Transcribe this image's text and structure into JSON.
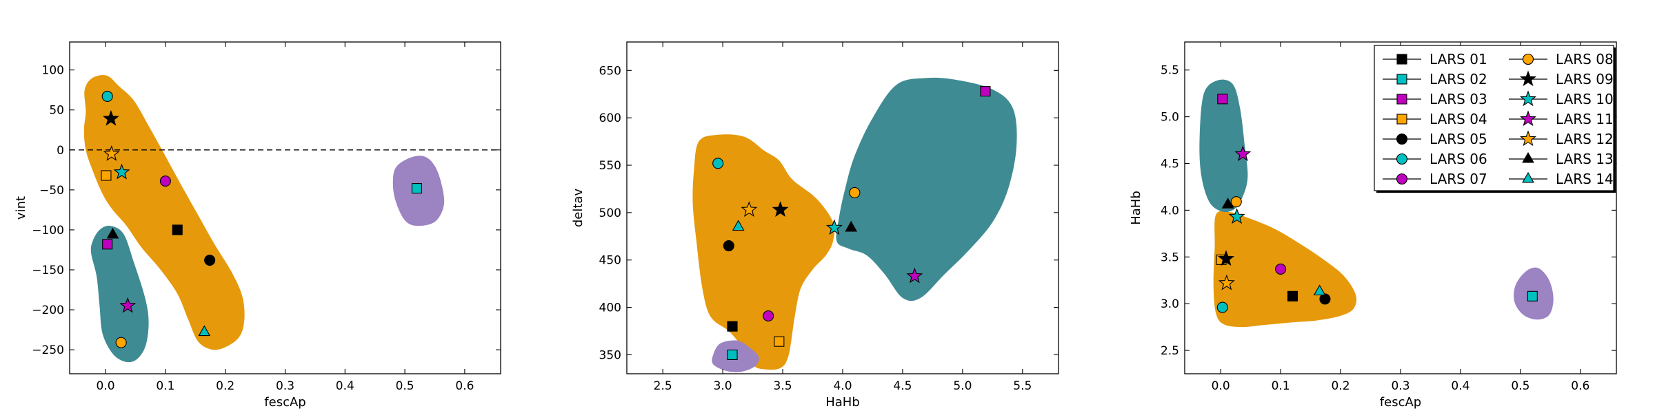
{
  "colors": {
    "orange": "#e6990a",
    "teal": "#3f8b93",
    "purple": "#9c83c2",
    "black": "#000000",
    "cyan": "#00bfbf",
    "magenta": "#bf00bf",
    "orange_marker": "#ffa500"
  },
  "legend": {
    "placement": "top-right of third panel, two columns",
    "entries": [
      {
        "label": "LARS 01",
        "marker": "square",
        "color": "#000000"
      },
      {
        "label": "LARS 02",
        "marker": "square",
        "color": "#00bfbf"
      },
      {
        "label": "LARS 03",
        "marker": "square",
        "color": "#bf00bf"
      },
      {
        "label": "LARS 04",
        "marker": "square",
        "color": "#ffa500"
      },
      {
        "label": "LARS 05",
        "marker": "circle",
        "color": "#000000"
      },
      {
        "label": "LARS 06",
        "marker": "circle",
        "color": "#00bfbf"
      },
      {
        "label": "LARS 07",
        "marker": "circle",
        "color": "#bf00bf"
      },
      {
        "label": "LARS 08",
        "marker": "circle",
        "color": "#ffa500"
      },
      {
        "label": "LARS 09",
        "marker": "star",
        "color": "#000000"
      },
      {
        "label": "LARS 10",
        "marker": "star",
        "color": "#00bfbf"
      },
      {
        "label": "LARS 11",
        "marker": "star",
        "color": "#bf00bf"
      },
      {
        "label": "LARS 12",
        "marker": "star",
        "color": "#ffa500"
      },
      {
        "label": "LARS 13",
        "marker": "triangle",
        "color": "#000000"
      },
      {
        "label": "LARS 14",
        "marker": "triangle",
        "color": "#00bfbf"
      }
    ]
  },
  "chart_data": [
    {
      "type": "scatter",
      "xlabel": "fescAp",
      "ylabel": "vint",
      "xlim": [
        -0.06,
        0.66
      ],
      "ylim": [
        -280,
        135
      ],
      "xticks": [
        0.0,
        0.1,
        0.2,
        0.3,
        0.4,
        0.5,
        0.6
      ],
      "xtick_labels": [
        "0.0",
        "0.1",
        "0.2",
        "0.3",
        "0.4",
        "0.5",
        "0.6"
      ],
      "yticks": [
        -250,
        -200,
        -150,
        -100,
        -50,
        0,
        50,
        100
      ],
      "ytick_labels": [
        "−250",
        "−200",
        "−150",
        "−100",
        "−50",
        "0",
        "50",
        "100"
      ],
      "reference_line": {
        "y": 0,
        "style": "dashed"
      },
      "regions": [
        {
          "color": "orange",
          "points": [
            [
              -0.033,
              48
            ],
            [
              -0.035,
              75
            ],
            [
              -0.022,
              90
            ],
            [
              0.002,
              93
            ],
            [
              0.022,
              80
            ],
            [
              0.047,
              62
            ],
            [
              0.072,
              30
            ],
            [
              0.098,
              -5
            ],
            [
              0.122,
              -38
            ],
            [
              0.152,
              -78
            ],
            [
              0.182,
              -118
            ],
            [
              0.21,
              -152
            ],
            [
              0.228,
              -182
            ],
            [
              0.232,
              -210
            ],
            [
              0.225,
              -232
            ],
            [
              0.205,
              -245
            ],
            [
              0.18,
              -250
            ],
            [
              0.155,
              -240
            ],
            [
              0.138,
              -212
            ],
            [
              0.12,
              -180
            ],
            [
              0.092,
              -150
            ],
            [
              0.06,
              -122
            ],
            [
              0.035,
              -95
            ],
            [
              0.012,
              -75
            ],
            [
              -0.005,
              -55
            ],
            [
              -0.022,
              -25
            ],
            [
              -0.033,
              0
            ],
            [
              -0.036,
              25
            ]
          ]
        },
        {
          "color": "teal",
          "points": [
            [
              -0.022,
              -115
            ],
            [
              -0.01,
              -100
            ],
            [
              0.008,
              -95
            ],
            [
              0.03,
              -105
            ],
            [
              0.047,
              -140
            ],
            [
              0.066,
              -185
            ],
            [
              0.072,
              -215
            ],
            [
              0.067,
              -245
            ],
            [
              0.052,
              -262
            ],
            [
              0.033,
              -265
            ],
            [
              0.012,
              -255
            ],
            [
              -0.005,
              -230
            ],
            [
              -0.01,
              -195
            ],
            [
              -0.015,
              -158
            ],
            [
              -0.024,
              -130
            ]
          ]
        },
        {
          "color": "purple",
          "points": [
            [
              0.485,
              -22
            ],
            [
              0.508,
              -10
            ],
            [
              0.532,
              -8
            ],
            [
              0.55,
              -20
            ],
            [
              0.562,
              -45
            ],
            [
              0.565,
              -70
            ],
            [
              0.55,
              -90
            ],
            [
              0.52,
              -95
            ],
            [
              0.5,
              -88
            ],
            [
              0.485,
              -65
            ],
            [
              0.48,
              -42
            ]
          ]
        }
      ],
      "points": [
        {
          "label": "LARS 01",
          "x": 0.12,
          "y": -100
        },
        {
          "label": "LARS 02",
          "x": 0.52,
          "y": -48
        },
        {
          "label": "LARS 03",
          "x": 0.003,
          "y": -118
        },
        {
          "label": "LARS 04",
          "x": 0.001,
          "y": -32
        },
        {
          "label": "LARS 05",
          "x": 0.174,
          "y": -138
        },
        {
          "label": "LARS 06",
          "x": 0.003,
          "y": 67
        },
        {
          "label": "LARS 07",
          "x": 0.1,
          "y": -39
        },
        {
          "label": "LARS 08",
          "x": 0.026,
          "y": -241
        },
        {
          "label": "LARS 09",
          "x": 0.009,
          "y": 39
        },
        {
          "label": "LARS 10",
          "x": 0.027,
          "y": -28
        },
        {
          "label": "LARS 11",
          "x": 0.037,
          "y": -195
        },
        {
          "label": "LARS 12",
          "x": 0.01,
          "y": -5
        },
        {
          "label": "LARS 13",
          "x": 0.012,
          "y": -106
        },
        {
          "label": "LARS 14",
          "x": 0.165,
          "y": -228
        }
      ]
    },
    {
      "type": "scatter",
      "xlabel": "HaHb",
      "ylabel": "deltav",
      "xlim": [
        2.2,
        5.8
      ],
      "ylim": [
        330,
        680
      ],
      "xticks": [
        2.5,
        3.0,
        3.5,
        4.0,
        4.5,
        5.0,
        5.5
      ],
      "xtick_labels": [
        "2.5",
        "3.0",
        "3.5",
        "4.0",
        "4.5",
        "5.0",
        "5.5"
      ],
      "yticks": [
        350,
        400,
        450,
        500,
        550,
        600,
        650
      ],
      "ytick_labels": [
        "350",
        "400",
        "450",
        "500",
        "550",
        "600",
        "650"
      ],
      "regions": [
        {
          "color": "orange",
          "points": [
            [
              2.76,
              545
            ],
            [
              2.8,
              575
            ],
            [
              2.95,
              582
            ],
            [
              3.18,
              580
            ],
            [
              3.35,
              565
            ],
            [
              3.47,
              555
            ],
            [
              3.58,
              535
            ],
            [
              3.78,
              515
            ],
            [
              3.92,
              490
            ],
            [
              3.92,
              470
            ],
            [
              3.86,
              455
            ],
            [
              3.75,
              440
            ],
            [
              3.65,
              420
            ],
            [
              3.6,
              390
            ],
            [
              3.55,
              350
            ],
            [
              3.48,
              336
            ],
            [
              3.33,
              335
            ],
            [
              3.25,
              340
            ],
            [
              3.15,
              360
            ],
            [
              3.05,
              375
            ],
            [
              2.9,
              390
            ],
            [
              2.83,
              420
            ],
            [
              2.78,
              470
            ],
            [
              2.75,
              510
            ]
          ]
        },
        {
          "color": "teal",
          "points": [
            [
              4.25,
              600
            ],
            [
              4.45,
              635
            ],
            [
              4.7,
              642
            ],
            [
              4.95,
              640
            ],
            [
              5.25,
              630
            ],
            [
              5.42,
              610
            ],
            [
              5.45,
              570
            ],
            [
              5.38,
              525
            ],
            [
              5.25,
              490
            ],
            [
              5.05,
              460
            ],
            [
              4.85,
              435
            ],
            [
              4.65,
              410
            ],
            [
              4.5,
              410
            ],
            [
              4.35,
              435
            ],
            [
              4.2,
              455
            ],
            [
              4.05,
              462
            ],
            [
              3.95,
              470
            ],
            [
              3.97,
              495
            ],
            [
              4.02,
              525
            ],
            [
              4.1,
              560
            ]
          ]
        },
        {
          "color": "purple",
          "points": [
            [
              2.92,
              350
            ],
            [
              2.98,
              362
            ],
            [
              3.12,
              365
            ],
            [
              3.22,
              358
            ],
            [
              3.3,
              348
            ],
            [
              3.27,
              338
            ],
            [
              3.15,
              332
            ],
            [
              3.03,
              333
            ],
            [
              2.92,
              340
            ]
          ]
        }
      ],
      "points": [
        {
          "label": "LARS 01",
          "x": 3.08,
          "y": 380
        },
        {
          "label": "LARS 02",
          "x": 3.08,
          "y": 350
        },
        {
          "label": "LARS 03",
          "x": 5.19,
          "y": 628
        },
        {
          "label": "LARS 04",
          "x": 3.47,
          "y": 364
        },
        {
          "label": "LARS 05",
          "x": 3.05,
          "y": 465
        },
        {
          "label": "LARS 06",
          "x": 2.96,
          "y": 552
        },
        {
          "label": "LARS 07",
          "x": 3.38,
          "y": 391
        },
        {
          "label": "LARS 08",
          "x": 4.1,
          "y": 521
        },
        {
          "label": "LARS 09",
          "x": 3.48,
          "y": 503
        },
        {
          "label": "LARS 10",
          "x": 3.93,
          "y": 484
        },
        {
          "label": "LARS 11",
          "x": 4.6,
          "y": 433
        },
        {
          "label": "LARS 12",
          "x": 3.22,
          "y": 503
        },
        {
          "label": "LARS 13",
          "x": 4.07,
          "y": 484
        },
        {
          "label": "LARS 14",
          "x": 3.13,
          "y": 485
        }
      ]
    },
    {
      "type": "scatter",
      "xlabel": "fescAp",
      "ylabel": "HaHb",
      "xlim": [
        -0.06,
        0.66
      ],
      "ylim": [
        2.25,
        5.8
      ],
      "xticks": [
        0.0,
        0.1,
        0.2,
        0.3,
        0.4,
        0.5,
        0.6
      ],
      "xtick_labels": [
        "0.0",
        "0.1",
        "0.2",
        "0.3",
        "0.4",
        "0.5",
        "0.6"
      ],
      "yticks": [
        2.5,
        3.0,
        3.5,
        4.0,
        4.5,
        5.0,
        5.5
      ],
      "ytick_labels": [
        "2.5",
        "3.0",
        "3.5",
        "4.0",
        "4.5",
        "5.0",
        "5.5"
      ],
      "regions": [
        {
          "color": "orange",
          "points": [
            [
              -0.008,
              3.95
            ],
            [
              0.015,
              3.98
            ],
            [
              0.045,
              3.92
            ],
            [
              0.09,
              3.8
            ],
            [
              0.13,
              3.65
            ],
            [
              0.17,
              3.48
            ],
            [
              0.205,
              3.3
            ],
            [
              0.225,
              3.1
            ],
            [
              0.222,
              2.95
            ],
            [
              0.2,
              2.87
            ],
            [
              0.16,
              2.82
            ],
            [
              0.12,
              2.8
            ],
            [
              0.07,
              2.77
            ],
            [
              0.035,
              2.75
            ],
            [
              0.005,
              2.78
            ],
            [
              -0.008,
              2.9
            ],
            [
              -0.012,
              3.2
            ],
            [
              -0.01,
              3.6
            ]
          ]
        },
        {
          "color": "teal",
          "points": [
            [
              -0.035,
              4.8
            ],
            [
              -0.028,
              5.25
            ],
            [
              -0.005,
              5.39
            ],
            [
              0.02,
              5.35
            ],
            [
              0.032,
              5.1
            ],
            [
              0.04,
              4.7
            ],
            [
              0.045,
              4.35
            ],
            [
              0.035,
              4.12
            ],
            [
              0.02,
              4.0
            ],
            [
              0.0,
              3.99
            ],
            [
              -0.02,
              4.1
            ],
            [
              -0.033,
              4.4
            ]
          ]
        },
        {
          "color": "purple",
          "points": [
            [
              0.492,
              3.2
            ],
            [
              0.51,
              3.35
            ],
            [
              0.53,
              3.38
            ],
            [
              0.548,
              3.25
            ],
            [
              0.555,
              3.05
            ],
            [
              0.548,
              2.88
            ],
            [
              0.528,
              2.83
            ],
            [
              0.505,
              2.88
            ],
            [
              0.49,
              3.02
            ]
          ]
        }
      ],
      "points": [
        {
          "label": "LARS 01",
          "x": 0.12,
          "y": 3.08
        },
        {
          "label": "LARS 02",
          "x": 0.52,
          "y": 3.08
        },
        {
          "label": "LARS 03",
          "x": 0.003,
          "y": 5.19
        },
        {
          "label": "LARS 04",
          "x": 0.001,
          "y": 3.47
        },
        {
          "label": "LARS 05",
          "x": 0.174,
          "y": 3.05
        },
        {
          "label": "LARS 06",
          "x": 0.003,
          "y": 2.96
        },
        {
          "label": "LARS 07",
          "x": 0.1,
          "y": 3.37
        },
        {
          "label": "LARS 08",
          "x": 0.026,
          "y": 4.09
        },
        {
          "label": "LARS 09",
          "x": 0.009,
          "y": 3.48
        },
        {
          "label": "LARS 10",
          "x": 0.027,
          "y": 3.93
        },
        {
          "label": "LARS 11",
          "x": 0.037,
          "y": 4.6
        },
        {
          "label": "LARS 12",
          "x": 0.01,
          "y": 3.22
        },
        {
          "label": "LARS 13",
          "x": 0.012,
          "y": 4.06
        },
        {
          "label": "LARS 14",
          "x": 0.165,
          "y": 3.13
        }
      ]
    }
  ]
}
